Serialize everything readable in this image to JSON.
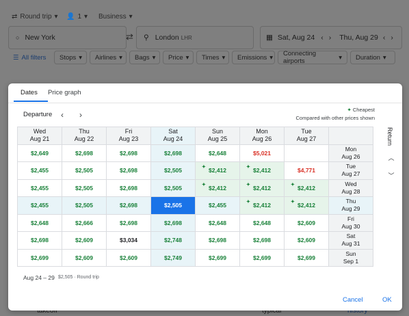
{
  "background": {
    "trip_type": "Round trip",
    "passengers": "1",
    "cabin": "Business",
    "origin": "New York",
    "destination": "London",
    "destination_code": "LHR",
    "depart_date": "Sat, Aug 24",
    "return_date": "Thu, Aug 29",
    "filters": {
      "all": "All filters",
      "chips": [
        "Stops",
        "Airlines",
        "Bags",
        "Price",
        "Times",
        "Emissions",
        "Connecting airports",
        "Duration"
      ]
    },
    "footer": [
      "takeoff",
      "typical",
      "history"
    ]
  },
  "modal": {
    "tabs": [
      "Dates",
      "Price graph"
    ],
    "departure_label": "Departure",
    "legend": {
      "cheapest": "Cheapest",
      "compared": "Compared with other prices shown"
    },
    "return_label": "Return",
    "columns": [
      {
        "day": "Wed",
        "date": "Aug 21"
      },
      {
        "day": "Thu",
        "date": "Aug 22"
      },
      {
        "day": "Fri",
        "date": "Aug 23"
      },
      {
        "day": "Sat",
        "date": "Aug 24"
      },
      {
        "day": "Sun",
        "date": "Aug 25"
      },
      {
        "day": "Mon",
        "date": "Aug 26"
      },
      {
        "day": "Tue",
        "date": "Aug 27"
      }
    ],
    "rows": [
      {
        "day": "Mon",
        "date": "Aug 26",
        "cells": [
          {
            "p": "$2,649",
            "c": "green"
          },
          {
            "p": "$2,698",
            "c": "green"
          },
          {
            "p": "$2,698",
            "c": "green"
          },
          {
            "p": "$2,698",
            "c": "green",
            "bg": "blue"
          },
          {
            "p": "$2,648",
            "c": "green"
          },
          {
            "p": "$5,021",
            "c": "red"
          },
          {
            "p": "",
            "c": "green"
          }
        ]
      },
      {
        "day": "Tue",
        "date": "Aug 27",
        "cells": [
          {
            "p": "$2,455",
            "c": "green"
          },
          {
            "p": "$2,505",
            "c": "green"
          },
          {
            "p": "$2,698",
            "c": "green"
          },
          {
            "p": "$2,505",
            "c": "green",
            "bg": "blue"
          },
          {
            "p": "$2,412",
            "c": "green",
            "bg": "green",
            "star": true
          },
          {
            "p": "$2,412",
            "c": "green",
            "bg": "green",
            "star": true
          },
          {
            "p": "$4,771",
            "c": "red"
          }
        ]
      },
      {
        "day": "Wed",
        "date": "Aug 28",
        "cells": [
          {
            "p": "$2,455",
            "c": "green"
          },
          {
            "p": "$2,505",
            "c": "green"
          },
          {
            "p": "$2,698",
            "c": "green"
          },
          {
            "p": "$2,505",
            "c": "green",
            "bg": "blue"
          },
          {
            "p": "$2,412",
            "c": "green",
            "bg": "green",
            "star": true
          },
          {
            "p": "$2,412",
            "c": "green",
            "bg": "green",
            "star": true
          },
          {
            "p": "$2,412",
            "c": "green",
            "bg": "green",
            "star": true
          }
        ]
      },
      {
        "day": "Thu",
        "date": "Aug 29",
        "selected": true,
        "cells": [
          {
            "p": "$2,455",
            "c": "green",
            "bg": "blue"
          },
          {
            "p": "$2,505",
            "c": "green",
            "bg": "blue"
          },
          {
            "p": "$2,698",
            "c": "green",
            "bg": "blue"
          },
          {
            "p": "$2,505",
            "c": "white",
            "bg": "selected"
          },
          {
            "p": "$2,455",
            "c": "green",
            "bg": "blue"
          },
          {
            "p": "$2,412",
            "c": "green",
            "bg": "green",
            "star": true
          },
          {
            "p": "$2,412",
            "c": "green",
            "bg": "green",
            "star": true
          }
        ]
      },
      {
        "day": "Fri",
        "date": "Aug 30",
        "cells": [
          {
            "p": "$2,648",
            "c": "green"
          },
          {
            "p": "$2,666",
            "c": "green"
          },
          {
            "p": "$2,698",
            "c": "green"
          },
          {
            "p": "$2,698",
            "c": "green",
            "bg": "blue"
          },
          {
            "p": "$2,648",
            "c": "green"
          },
          {
            "p": "$2,648",
            "c": "green"
          },
          {
            "p": "$2,609",
            "c": "green"
          }
        ]
      },
      {
        "day": "Sat",
        "date": "Aug 31",
        "cells": [
          {
            "p": "$2,698",
            "c": "green"
          },
          {
            "p": "$2,609",
            "c": "green"
          },
          {
            "p": "$3,034",
            "c": "dark"
          },
          {
            "p": "$2,748",
            "c": "green",
            "bg": "blue"
          },
          {
            "p": "$2,698",
            "c": "green"
          },
          {
            "p": "$2,698",
            "c": "green"
          },
          {
            "p": "$2,609",
            "c": "green"
          }
        ]
      },
      {
        "day": "Sun",
        "date": "Sep 1",
        "cells": [
          {
            "p": "$2,699",
            "c": "green"
          },
          {
            "p": "$2,609",
            "c": "green"
          },
          {
            "p": "$2,609",
            "c": "green"
          },
          {
            "p": "$2,749",
            "c": "green",
            "bg": "blue"
          },
          {
            "p": "$2,699",
            "c": "green"
          },
          {
            "p": "$2,699",
            "c": "green"
          },
          {
            "p": "$2,699",
            "c": "green"
          }
        ]
      }
    ],
    "summary": {
      "dates": "Aug 24 – 29",
      "price": "$2,505 · Round trip"
    },
    "buttons": {
      "cancel": "Cancel",
      "ok": "OK"
    }
  },
  "colors": {
    "accent": "#1a73e8",
    "green": "#188038",
    "red": "#d93025"
  }
}
